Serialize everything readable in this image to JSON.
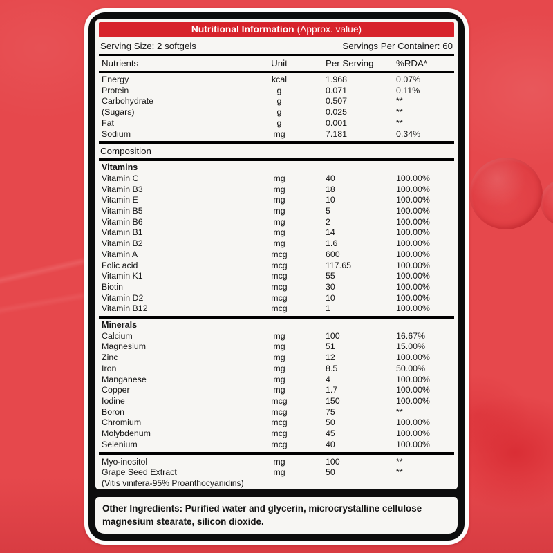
{
  "colors": {
    "background_red": "#e6484c",
    "header_bar_red": "#d7232b",
    "panel_bg": "#f7f6f3",
    "border_black": "#0d0d0d",
    "text": "#141414"
  },
  "label": {
    "header": {
      "title": "Nutritional Information",
      "subtitle": "(Approx. value)"
    },
    "serving": {
      "size": "Serving Size: 2 softgels",
      "per_container": "Servings Per Container: 60"
    },
    "columns": {
      "nutrients": "Nutrients",
      "unit": "Unit",
      "per_serving": "Per Serving",
      "rda": "%RDA*"
    },
    "macros": [
      {
        "name": "Energy",
        "unit": "kcal",
        "amount": "1.968",
        "rda": "0.07%"
      },
      {
        "name": "Protein",
        "unit": "g",
        "amount": "0.071",
        "rda": "0.11%"
      },
      {
        "name": "Carbohydrate",
        "unit": "g",
        "amount": "0.507",
        "rda": "**"
      },
      {
        "name": "(Sugars)",
        "unit": "g",
        "amount": "0.025",
        "rda": "**"
      },
      {
        "name": "Fat",
        "unit": "g",
        "amount": "0.001",
        "rda": "**"
      },
      {
        "name": "Sodium",
        "unit": "mg",
        "amount": "7.181",
        "rda": "0.34%"
      }
    ],
    "composition_label": "Composition",
    "sections": [
      {
        "title": "Vitamins",
        "rows": [
          {
            "name": "Vitamin C",
            "unit": "mg",
            "amount": "40",
            "rda": "100.00%"
          },
          {
            "name": "Vitamin B3",
            "unit": "mg",
            "amount": "18",
            "rda": "100.00%"
          },
          {
            "name": "Vitamin E",
            "unit": "mg",
            "amount": "10",
            "rda": "100.00%"
          },
          {
            "name": "Vitamin B5",
            "unit": "mg",
            "amount": "5",
            "rda": "100.00%"
          },
          {
            "name": "Vitamin B6",
            "unit": "mg",
            "amount": "2",
            "rda": "100.00%"
          },
          {
            "name": "Vitamin B1",
            "unit": "mg",
            "amount": "14",
            "rda": "100.00%"
          },
          {
            "name": "Vitamin B2",
            "unit": "mg",
            "amount": "1.6",
            "rda": "100.00%"
          },
          {
            "name": "Vitamin A",
            "unit": "mcg",
            "amount": "600",
            "rda": "100.00%"
          },
          {
            "name": "Folic acid",
            "unit": "mcg",
            "amount": "117.65",
            "rda": "100.00%"
          },
          {
            "name": "Vitamin K1",
            "unit": "mcg",
            "amount": "55",
            "rda": "100.00%"
          },
          {
            "name": "Biotin",
            "unit": "mcg",
            "amount": "30",
            "rda": "100.00%"
          },
          {
            "name": "Vitamin D2",
            "unit": "mcg",
            "amount": "10",
            "rda": "100.00%"
          },
          {
            "name": "Vitamin B12",
            "unit": "mcg",
            "amount": "1",
            "rda": "100.00%"
          }
        ]
      },
      {
        "title": "Minerals",
        "rows": [
          {
            "name": "Calcium",
            "unit": "mg",
            "amount": "100",
            "rda": "16.67%"
          },
          {
            "name": "Magnesium",
            "unit": "mg",
            "amount": "51",
            "rda": "15.00%"
          },
          {
            "name": "Zinc",
            "unit": "mg",
            "amount": "12",
            "rda": "100.00%"
          },
          {
            "name": "Iron",
            "unit": "mg",
            "amount": "8.5",
            "rda": "50.00%"
          },
          {
            "name": "Manganese",
            "unit": "mg",
            "amount": "4",
            "rda": "100.00%"
          },
          {
            "name": "Copper",
            "unit": "mg",
            "amount": "1.7",
            "rda": "100.00%"
          },
          {
            "name": "Iodine",
            "unit": "mcg",
            "amount": "150",
            "rda": "100.00%"
          },
          {
            "name": "Boron",
            "unit": "mcg",
            "amount": "75",
            "rda": "**"
          },
          {
            "name": "Chromium",
            "unit": "mcg",
            "amount": "50",
            "rda": "100.00%"
          },
          {
            "name": "Molybdenum",
            "unit": "mcg",
            "amount": "45",
            "rda": "100.00%"
          },
          {
            "name": "Selenium",
            "unit": "mcg",
            "amount": "40",
            "rda": "100.00%"
          }
        ]
      }
    ],
    "extras": [
      {
        "name": "Myo-inositol",
        "unit": "mg",
        "amount": "100",
        "rda": "**"
      },
      {
        "name": "Grape Seed Extract",
        "unit": "mg",
        "amount": "50",
        "rda": "**",
        "note": "(Vitis vinifera-95% Proanthocyanidins)"
      }
    ],
    "other_ingredients": {
      "label": "Other Ingredients:",
      "text": " Purified water and glycerin, microcrystalline cellulose magnesium stearate, silicon dioxide."
    }
  }
}
